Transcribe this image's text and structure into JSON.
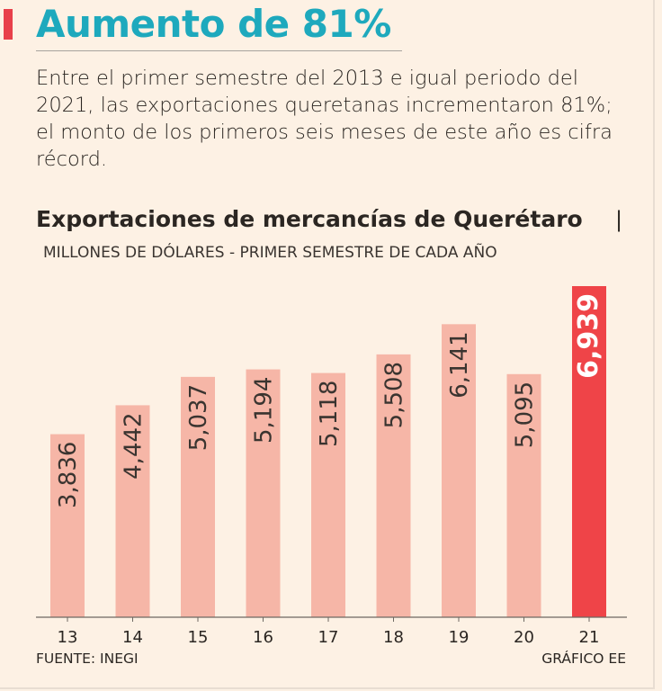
{
  "header": {
    "headline": "Aumento de 81%",
    "lede": "Entre el primer semestre del 2013 e igual periodo del 2021, las exportaciones queretanas incrementaron 81%; el monto de los primeros seis meses de este año es cifra récord."
  },
  "footer": {
    "source": "FUENTE: INEGI",
    "credit": "GRÁFICO EE"
  },
  "colors": {
    "headline": "#1ea9bd",
    "accent": "#e8404a",
    "bar": "#f6b6a7",
    "bar_highlight": "#ef4448",
    "background": "#fdf1e4"
  },
  "chart_data": {
    "type": "bar",
    "title": "Exportaciones de mercancías de Querétaro",
    "title_separator": "|",
    "subtitle": "MILLONES DE DÓLARES - PRIMER SEMESTRE DE CADA AÑO",
    "categories": [
      "13",
      "14",
      "15",
      "16",
      "17",
      "18",
      "19",
      "20",
      "21"
    ],
    "values": [
      3836,
      4442,
      5037,
      5194,
      5118,
      5508,
      6141,
      5095,
      6939
    ],
    "value_labels": [
      "3,836",
      "4,442",
      "5,037",
      "5,194",
      "5,118",
      "5,508",
      "6,141",
      "5,095",
      "6,939"
    ],
    "highlight_index": 8,
    "ylim": [
      0,
      6939
    ],
    "grid": false,
    "xlabel": "",
    "ylabel": ""
  }
}
